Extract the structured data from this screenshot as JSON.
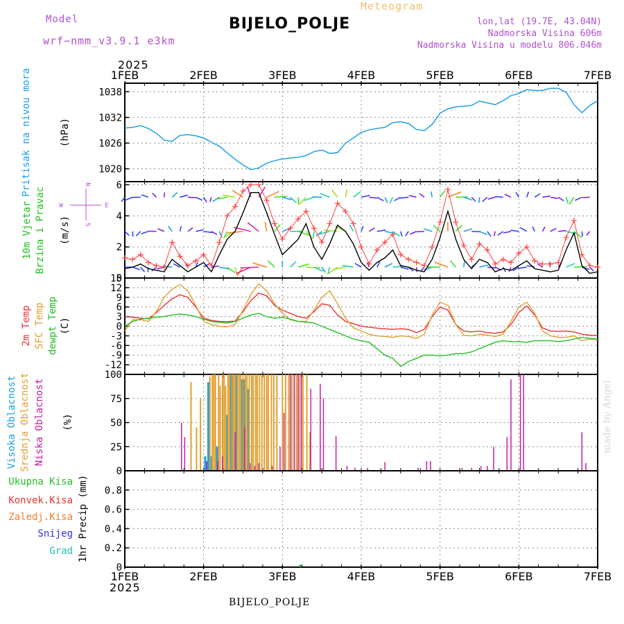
{
  "header": {
    "model_label": "Model",
    "model_version": "wrf−nmm_v3.9.1  e3km",
    "meteogram_label": "Meteogram",
    "station": "BIJELO_POLJE",
    "lonlat": "lon,lat (19.7E, 43.04N)",
    "altitude": "Nadmorska Visina 606m",
    "model_altitude": "Nadmorska Visina u modelu 806.046m",
    "year_top": "2025",
    "year_bottom": "2025",
    "footer_station": "BIJELO_POLJE",
    "credit": "made by Angel"
  },
  "colors": {
    "pressure": "#1ea0e6",
    "wind_speed": "#000000",
    "gust": "#ff4040",
    "temp2m": "#ee3030",
    "sfc_temp": "#e0a030",
    "dewpoint": "#20c020",
    "high_cloud": "#1ea0e6",
    "mid_cloud": "#e0a030",
    "low_cloud": "#c020a0",
    "total_precip": "#20c020",
    "convective": "#ee3030",
    "freezing": "#f08030",
    "snow": "#3030e0",
    "hail": "#20c0b0",
    "purple_label": "#b050d0"
  },
  "chart_data": [
    {
      "type": "line",
      "title": "Pritisak na nivou mora",
      "ylabel": "(hPa)",
      "name": "pressure",
      "x_days": [
        0,
        0.1,
        0.2,
        0.3,
        0.4,
        0.5,
        0.6,
        0.7,
        0.8,
        0.9,
        1.0,
        1.1,
        1.2,
        1.3,
        1.4,
        1.5,
        1.6,
        1.7,
        1.8,
        1.9,
        2.0,
        2.1,
        2.2,
        2.3,
        2.4,
        2.5,
        2.6,
        2.7,
        2.8,
        2.9,
        3.0,
        3.1,
        3.2,
        3.3,
        3.4,
        3.5,
        3.6,
        3.7,
        3.8,
        3.9,
        4.0,
        4.1,
        4.2,
        4.3,
        4.4,
        4.5,
        4.6,
        4.7,
        4.8,
        4.9,
        5.0,
        5.1,
        5.2,
        5.3,
        5.4,
        5.5,
        5.6,
        5.7,
        5.8,
        5.9,
        6.0
      ],
      "values": [
        1029.5,
        1029.7,
        1030.1,
        1029.4,
        1028.3,
        1026.7,
        1026.4,
        1027.8,
        1028.0,
        1027.7,
        1027.2,
        1026.2,
        1025.3,
        1023.7,
        1022.2,
        1020.9,
        1019.8,
        1020.2,
        1021.3,
        1021.9,
        1022.3,
        1022.5,
        1022.7,
        1023.1,
        1024.0,
        1024.4,
        1023.6,
        1023.8,
        1026.0,
        1027.2,
        1028.5,
        1029.1,
        1029.4,
        1029.7,
        1030.8,
        1031.0,
        1030.6,
        1029.2,
        1028.9,
        1030.4,
        1033.0,
        1034.0,
        1034.5,
        1034.6,
        1034.8,
        1035.8,
        1035.4,
        1035.0,
        1035.9,
        1037.1,
        1037.6,
        1038.5,
        1038.3,
        1038.3,
        1038.8,
        1038.8,
        1037.9,
        1035.0,
        1033.1,
        1034.8,
        1035.9
      ],
      "ylim": [
        1017,
        1040
      ],
      "yticks": [
        1020,
        1026,
        1032,
        1038
      ]
    },
    {
      "type": "line",
      "title": "10m Vjetar Brzina i Pravac",
      "ylabel": "(m/s)",
      "series": [
        {
          "name": "wind_speed",
          "values": [
            0.6,
            0.7,
            0.9,
            0.6,
            0.5,
            0.4,
            1.2,
            0.8,
            0.4,
            0.7,
            1.0,
            0.4,
            1.5,
            2.5,
            3.0,
            4.2,
            5.5,
            5.5,
            4.2,
            2.8,
            1.5,
            2.0,
            2.5,
            3.5,
            2.0,
            1.2,
            2.2,
            3.4,
            3.0,
            2.2,
            1.0,
            0.5,
            1.0,
            1.3,
            1.8,
            0.8,
            0.7,
            0.5,
            0.4,
            1.2,
            2.6,
            4.3,
            2.5,
            1.2,
            0.6,
            1.2,
            1.0,
            0.4,
            0.6,
            0.5,
            0.8,
            1.1,
            0.6,
            0.5,
            0.4,
            0.5,
            1.8,
            2.9,
            0.8,
            0.3,
            0.4
          ]
        },
        {
          "name": "gusts",
          "values": [
            1.3,
            1.2,
            1.5,
            1.0,
            0.8,
            0.7,
            2.3,
            1.4,
            0.8,
            1.1,
            1.5,
            0.8,
            2.3,
            4.0,
            4.6,
            5.6,
            6.0,
            6.0,
            5.0,
            3.5,
            2.5,
            3.2,
            3.8,
            4.3,
            3.2,
            2.3,
            3.5,
            4.8,
            4.3,
            3.5,
            2.0,
            0.9,
            1.8,
            2.3,
            2.8,
            1.5,
            1.2,
            1.0,
            0.8,
            2.0,
            3.6,
            5.7,
            3.6,
            2.1,
            1.2,
            2.2,
            1.8,
            0.9,
            1.2,
            1.0,
            1.6,
            2.0,
            1.1,
            0.9,
            0.9,
            1.0,
            2.6,
            3.7,
            1.5,
            0.8,
            0.7
          ]
        }
      ],
      "direction_levels_ms": [
        0.7,
        3.0,
        5.2
      ],
      "direction_labels": [
        "W",
        "E",
        "N",
        "S"
      ],
      "ylim": [
        0,
        6.2
      ],
      "yticks": [
        0,
        2,
        4,
        6
      ]
    },
    {
      "type": "line",
      "title": "2m Temp / SFC Temp / dewpt Temp",
      "ylabel": "(C)",
      "series": [
        {
          "name": "2m Temp",
          "values": [
            3.0,
            2.8,
            2.5,
            2.3,
            4.2,
            6.5,
            8.5,
            9.8,
            9.0,
            6.0,
            2.5,
            1.8,
            1.5,
            1.4,
            1.6,
            4.5,
            8.0,
            10.3,
            9.5,
            6.5,
            5.0,
            4.0,
            3.0,
            2.5,
            4.5,
            7.0,
            6.5,
            3.5,
            1.5,
            0.8,
            0.0,
            -0.3,
            -0.6,
            -0.8,
            -1.0,
            -0.8,
            -1.0,
            -2.0,
            -1.0,
            3.0,
            6.0,
            5.0,
            0.5,
            -1.5,
            -1.8,
            -1.5,
            -2.0,
            -2.2,
            -1.8,
            0.5,
            4.3,
            6.3,
            3.5,
            -0.5,
            -1.5,
            -1.6,
            -1.5,
            -1.8,
            -2.5,
            -2.8,
            -2.9
          ]
        },
        {
          "name": "SFC Temp",
          "values": [
            -1.5,
            2.0,
            2.0,
            1.5,
            4.5,
            9.0,
            11.5,
            13.0,
            11.0,
            6.5,
            1.5,
            0.5,
            0.0,
            -0.2,
            0.5,
            5.0,
            10.0,
            13.2,
            11.0,
            7.0,
            4.0,
            2.0,
            1.5,
            1.5,
            5.0,
            9.0,
            11.0,
            7.0,
            2.5,
            -0.5,
            -1.5,
            -2.5,
            -3.0,
            -3.2,
            -3.5,
            -3.0,
            -3.2,
            -3.8,
            -2.5,
            3.5,
            7.5,
            6.5,
            0.5,
            -2.8,
            -3.0,
            -2.5,
            -2.8,
            -3.2,
            -2.5,
            1.5,
            6.0,
            7.5,
            4.0,
            -1.5,
            -3.0,
            -3.5,
            -3.5,
            -3.0,
            -4.5,
            -4.0,
            -4.2
          ]
        },
        {
          "name": "dewpt Temp",
          "values": [
            0.0,
            1.5,
            2.2,
            2.5,
            2.8,
            3.0,
            3.5,
            3.8,
            3.5,
            3.0,
            2.2,
            1.5,
            1.2,
            1.0,
            1.5,
            2.5,
            3.5,
            4.0,
            3.0,
            2.5,
            2.8,
            2.2,
            1.5,
            1.3,
            1.0,
            0.0,
            -1.0,
            -2.0,
            -3.0,
            -4.0,
            -4.5,
            -5.0,
            -7.0,
            -9.0,
            -10.0,
            -12.5,
            -11.0,
            -10.0,
            -9.0,
            -9.0,
            -9.2,
            -9.0,
            -8.5,
            -8.5,
            -8.0,
            -7.0,
            -6.0,
            -5.0,
            -4.5,
            -4.8,
            -4.8,
            -5.0,
            -4.5,
            -4.5,
            -4.5,
            -4.8,
            -4.5,
            -4.0,
            -3.5,
            -3.8,
            -4.0
          ]
        }
      ],
      "ylim": [
        -15,
        15
      ],
      "yticks": [
        -12,
        -9,
        -6,
        -3,
        0,
        3,
        6,
        9,
        12,
        15
      ]
    },
    {
      "type": "bar",
      "title": "Visoka Oblacnost / Srednja Oblacnost / Niska Oblacnost",
      "ylabel": "(%)",
      "series": [
        {
          "name": "Visoka Oblacnost",
          "bars": [
            [
              1.02,
              15
            ],
            [
              1.06,
              92
            ],
            [
              1.09,
              15
            ],
            [
              1.17,
              25
            ],
            [
              1.3,
              58
            ],
            [
              1.34,
              100
            ],
            [
              1.37,
              100
            ],
            [
              1.41,
              100
            ],
            [
              1.48,
              95
            ],
            [
              1.52,
              95
            ],
            [
              1.56,
              85
            ]
          ]
        },
        {
          "name": "Srednja Oblacnost",
          "bars": [
            [
              0.84,
              92
            ],
            [
              0.91,
              45
            ],
            [
              0.96,
              75
            ],
            [
              1.08,
              98
            ],
            [
              1.11,
              100
            ],
            [
              1.13,
              100
            ],
            [
              1.15,
              100
            ],
            [
              1.19,
              100
            ],
            [
              1.21,
              88
            ],
            [
              1.24,
              100
            ],
            [
              1.26,
              100
            ],
            [
              1.28,
              88
            ],
            [
              1.31,
              100
            ],
            [
              1.33,
              100
            ],
            [
              1.36,
              100
            ],
            [
              1.38,
              100
            ],
            [
              1.4,
              100
            ],
            [
              1.43,
              100
            ],
            [
              1.45,
              100
            ],
            [
              1.47,
              100
            ],
            [
              1.5,
              100
            ],
            [
              1.53,
              100
            ],
            [
              1.55,
              100
            ],
            [
              1.58,
              100
            ],
            [
              1.61,
              100
            ],
            [
              1.63,
              100
            ],
            [
              1.66,
              100
            ],
            [
              1.68,
              100
            ],
            [
              1.71,
              100
            ],
            [
              1.74,
              100
            ],
            [
              1.77,
              100
            ],
            [
              1.8,
              100
            ],
            [
              1.82,
              100
            ],
            [
              1.86,
              100
            ],
            [
              1.89,
              100
            ],
            [
              1.93,
              100
            ],
            [
              2.0,
              100
            ],
            [
              2.04,
              100
            ],
            [
              2.08,
              100
            ],
            [
              2.12,
              100
            ],
            [
              2.15,
              100
            ],
            [
              2.18,
              100
            ],
            [
              2.22,
              100
            ],
            [
              2.26,
              100
            ],
            [
              2.31,
              100
            ],
            [
              2.35,
              40
            ]
          ]
        },
        {
          "name": "Niska Oblacnost",
          "bars": [
            [
              0.72,
              50
            ],
            [
              0.76,
              35
            ],
            [
              1.04,
              10
            ],
            [
              1.18,
              10
            ],
            [
              1.24,
              15
            ],
            [
              1.4,
              40
            ],
            [
              1.52,
              45
            ],
            [
              1.59,
              8
            ],
            [
              1.65,
              5
            ],
            [
              1.7,
              8
            ],
            [
              1.87,
              5
            ],
            [
              1.97,
              25
            ],
            [
              2.02,
              60
            ],
            [
              2.1,
              100
            ],
            [
              2.15,
              100
            ],
            [
              2.2,
              100
            ],
            [
              2.24,
              100
            ],
            [
              2.36,
              85
            ],
            [
              2.48,
              90
            ],
            [
              2.52,
              75
            ],
            [
              2.68,
              36
            ],
            [
              2.82,
              5
            ],
            [
              2.92,
              3
            ],
            [
              3.08,
              3
            ],
            [
              3.3,
              9
            ],
            [
              3.72,
              3
            ],
            [
              3.83,
              10
            ],
            [
              3.88,
              10
            ],
            [
              4.28,
              3
            ],
            [
              4.4,
              3
            ],
            [
              4.52,
              5
            ],
            [
              4.6,
              5
            ],
            [
              4.68,
              25
            ],
            [
              4.85,
              35
            ],
            [
              4.9,
              95
            ],
            [
              5.02,
              100
            ],
            [
              5.06,
              100
            ],
            [
              5.8,
              40
            ],
            [
              5.85,
              8
            ]
          ]
        }
      ],
      "ylim": [
        0,
        100
      ],
      "yticks": [
        0,
        25,
        50,
        75,
        100
      ]
    },
    {
      "type": "line",
      "title": "1hr Precip (mm)",
      "ylabel": "1hr Precip (mm)",
      "series": [
        {
          "name": "Ukupna Kisa",
          "points": [
            [
              2.23,
              0.01
            ]
          ]
        },
        {
          "name": "Konvek.Kisa",
          "points": []
        },
        {
          "name": "Zaledj.Kisa",
          "points": []
        },
        {
          "name": "Snijeg",
          "points": []
        },
        {
          "name": "Grad",
          "points": []
        }
      ],
      "ylim": [
        0,
        1.0
      ],
      "yticks": [
        0,
        0.2,
        0.4,
        0.6,
        0.8
      ]
    }
  ],
  "x_axis": {
    "labels": [
      "1FEB",
      "2FEB",
      "3FEB",
      "4FEB",
      "5FEB",
      "6FEB",
      "7FEB"
    ],
    "range_days": [
      0,
      6
    ]
  },
  "panel_labels": {
    "pressure": [
      "Pritisak na nivou mora"
    ],
    "wind": [
      "10m Vjetar",
      "Brzina i Pravac"
    ],
    "temp": [
      "2m Temp",
      "SFC Temp",
      "dewpt Temp"
    ],
    "cloud": [
      "Visoka Oblacnost",
      "Srednja Oblacnost",
      "Niska Oblacnost"
    ],
    "precip": [
      "Ukupna Kisa",
      "Konvek.Kisa",
      "Zaledj.Kisa",
      "Snijeg",
      "Grad"
    ]
  },
  "units": {
    "pressure": "(hPa)",
    "wind": "(m/s)",
    "temp": "(C)",
    "cloud": "(%)",
    "precip": "1hr Precip (mm)"
  },
  "compass": {
    "w": "W",
    "e": "E",
    "n": "N",
    "s": "S"
  }
}
